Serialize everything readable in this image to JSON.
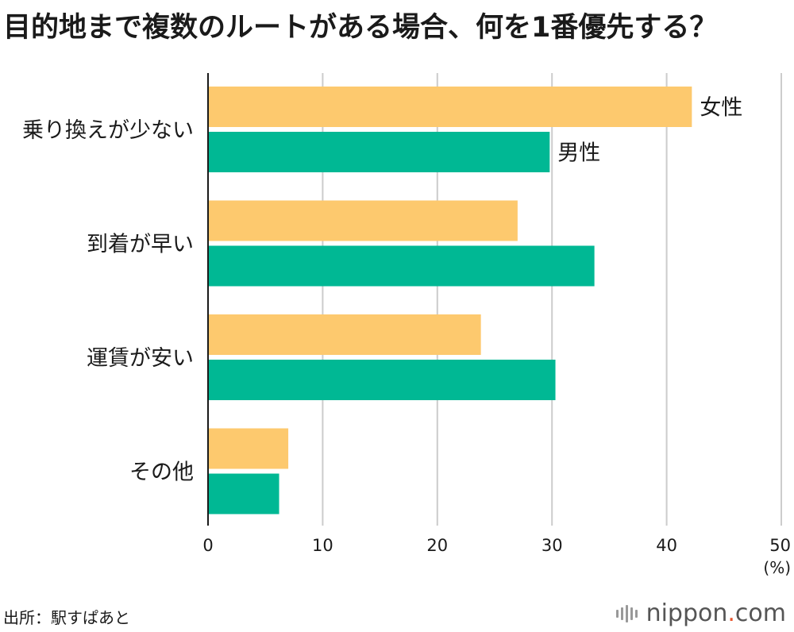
{
  "title": "目的地まで複数のルートがある場合、何を1番優先する？",
  "source": "出所：駅すぱあと",
  "logo": {
    "name": "nippon",
    "dot": ".",
    "tld": "com"
  },
  "colors": {
    "female": "#FDC96E",
    "male": "#00B894",
    "grid": "#CCCCCC",
    "axis": "#1a1a1a"
  },
  "chart_data": {
    "type": "bar",
    "orientation": "horizontal",
    "title": "目的地まで複数のルートがある場合、何を1番優先する？",
    "categories": [
      "乗り換えが少ない",
      "到着が早い",
      "運賃が安い",
      "その他"
    ],
    "series": [
      {
        "name": "女性",
        "values": [
          42.2,
          27.0,
          23.8,
          7.0
        ]
      },
      {
        "name": "男性",
        "values": [
          29.8,
          33.7,
          30.3,
          6.2
        ]
      }
    ],
    "xlim": [
      0,
      50
    ],
    "xticks": [
      0,
      10,
      20,
      30,
      40,
      50
    ],
    "xlabel": "(%)",
    "ylabel": "",
    "grid": true
  }
}
